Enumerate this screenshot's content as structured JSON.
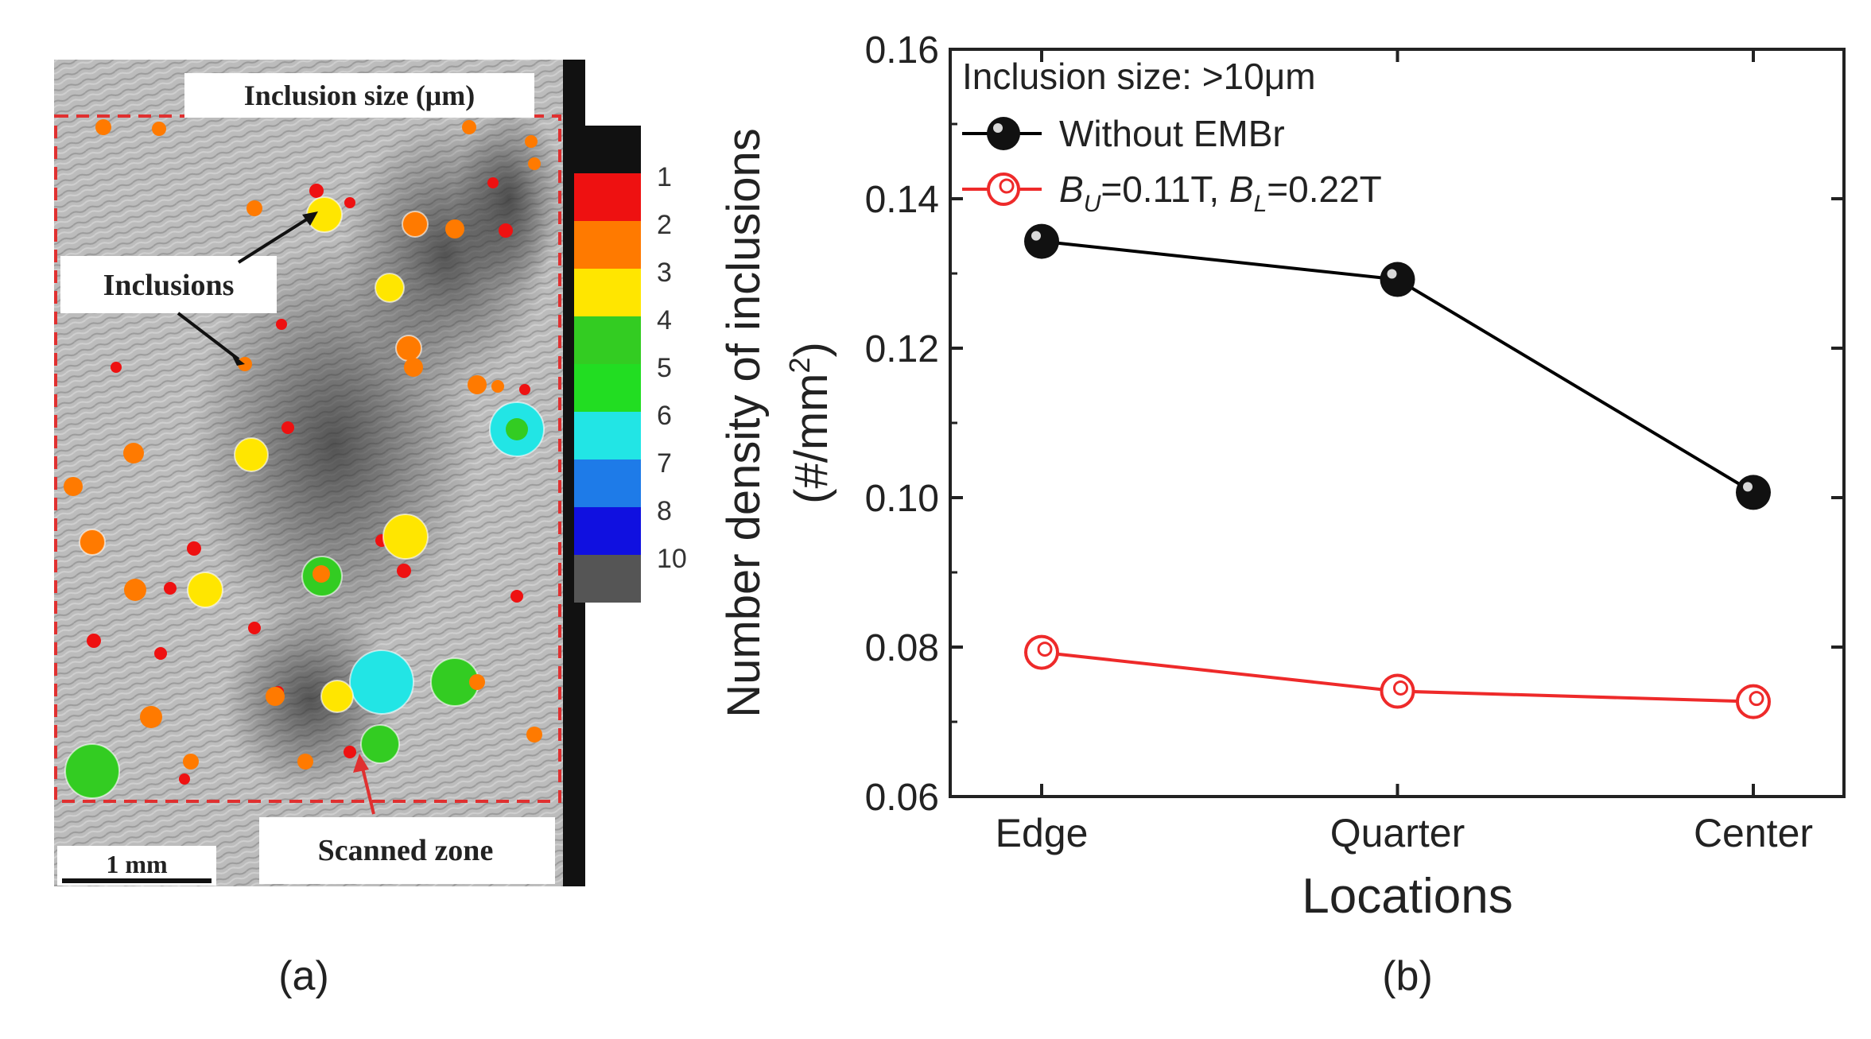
{
  "panel_a": {
    "colorbar_title": "Inclusion size (μm)",
    "colorbar": [
      {
        "label": "1",
        "color": "#ee1111"
      },
      {
        "label": "2",
        "color": "#ff7a00"
      },
      {
        "label": "3",
        "color": "#ffe600"
      },
      {
        "label": "4",
        "color": "#33cc22"
      },
      {
        "label": "5",
        "color": "#22dd22"
      },
      {
        "label": "6",
        "color": "#22e5e5"
      },
      {
        "label": "7",
        "color": "#1e7be8"
      },
      {
        "label": "8",
        "color": "#1010e0"
      },
      {
        "label": "10",
        "color": "#555555"
      }
    ],
    "colorbar_top_color": "#111111",
    "labels": {
      "inclusions": "Inclusions",
      "scanned_zone": "Scanned zone",
      "scale_bar": "1 mm"
    },
    "caption": "(a)"
  },
  "chart_data": {
    "type": "line",
    "title": "",
    "annotation": "Inclusion size: >10μm",
    "categories": [
      "Edge",
      "Quarter",
      "Center"
    ],
    "xlabel": "Locations",
    "ylabel": "Number density of inclusions",
    "ylabel_unit": "(#/mm",
    "ylabel_sup": "2",
    "ylabel_close": ")",
    "ylim": [
      0.06,
      0.16
    ],
    "yticks": [
      "0.06",
      "0.08",
      "0.10",
      "0.12",
      "0.14",
      "0.16"
    ],
    "ytick_values": [
      0.06,
      0.08,
      0.1,
      0.12,
      0.14,
      0.16
    ],
    "legend_position": "top-left",
    "series": [
      {
        "name": "Without EMBr",
        "color": "#000000",
        "marker": "filled-circle",
        "values": [
          0.1343,
          0.1292,
          0.1007
        ]
      },
      {
        "name": "B_U=0.11T, B_L=0.22T",
        "color": "#ee2a2a",
        "marker": "open-circle",
        "legend_parts": [
          "B",
          "U",
          "=0.11T, ",
          "B",
          "L",
          "=0.22T"
        ],
        "values": [
          0.0793,
          0.0741,
          0.0727
        ]
      }
    ],
    "caption": "(b)"
  }
}
